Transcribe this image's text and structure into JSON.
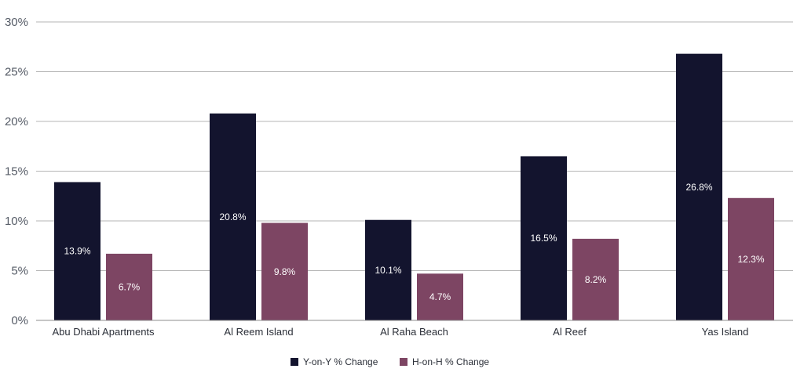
{
  "chart_data": {
    "type": "bar",
    "categories": [
      "Abu Dhabi Apartments",
      "Al Reem Island",
      "Al Raha Beach",
      "Al Reef",
      "Yas Island"
    ],
    "series": [
      {
        "name": "Y-on-Y % Change",
        "values": [
          13.9,
          20.8,
          10.1,
          16.5,
          26.8
        ],
        "labels": [
          "13.9%",
          "20.8%",
          "10.1%",
          "16.5%",
          "26.8%"
        ],
        "color": "#13142e"
      },
      {
        "name": "H-on-H % Change",
        "values": [
          6.7,
          9.8,
          4.7,
          8.2,
          12.3
        ],
        "labels": [
          "6.7%",
          "9.8%",
          "4.7%",
          "8.2%",
          "12.3%"
        ],
        "color": "#7d4563"
      }
    ],
    "ylim": [
      0,
      30
    ],
    "yticks": [
      0,
      5,
      10,
      15,
      20,
      25,
      30
    ],
    "ytick_labels": [
      "0%",
      "5%",
      "10%",
      "15%",
      "20%",
      "25%",
      "30%"
    ],
    "grid": true,
    "legend_position": "bottom-center",
    "title": "",
    "xlabel": "",
    "ylabel": ""
  }
}
